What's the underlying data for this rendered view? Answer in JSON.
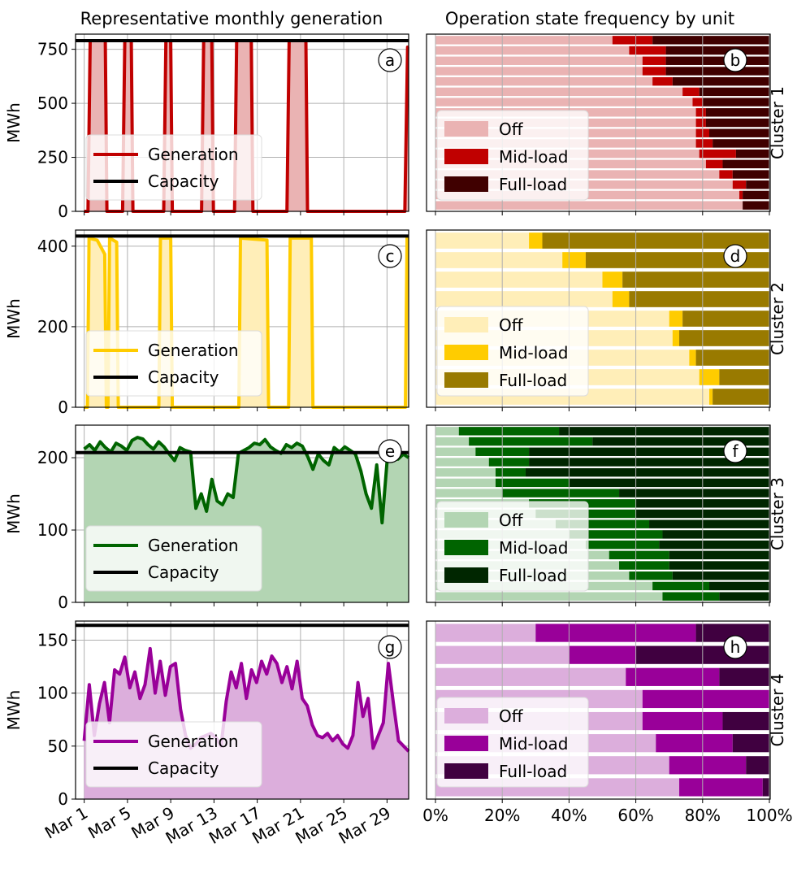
{
  "titles": {
    "left": "Representative monthly generation",
    "right": "Operation state frequency by unit"
  },
  "chart_data": [
    {
      "panel": "a",
      "type": "area",
      "ylabel": "MWh",
      "ylim": [
        0,
        820
      ],
      "yticks": [
        0,
        250,
        500,
        750
      ],
      "capacity": 790,
      "color": "#c00000",
      "fill": "#eab3b3",
      "segments": [
        [
          0.0,
          0
        ],
        [
          0.35,
          0
        ],
        [
          0.55,
          790
        ],
        [
          1.95,
          790
        ],
        [
          2.1,
          0
        ],
        [
          3.55,
          0
        ],
        [
          3.75,
          790
        ],
        [
          4.35,
          790
        ],
        [
          4.5,
          0
        ],
        [
          7.35,
          0
        ],
        [
          7.55,
          790
        ],
        [
          8.0,
          790
        ],
        [
          8.15,
          0
        ],
        [
          10.85,
          0
        ],
        [
          11.05,
          790
        ],
        [
          11.8,
          790
        ],
        [
          11.95,
          0
        ],
        [
          13.9,
          0
        ],
        [
          14.1,
          790
        ],
        [
          15.45,
          790
        ],
        [
          15.6,
          0
        ],
        [
          18.75,
          0
        ],
        [
          18.95,
          790
        ],
        [
          20.5,
          790
        ],
        [
          20.65,
          0
        ],
        [
          29.65,
          0
        ],
        [
          29.9,
          760
        ],
        [
          30.0,
          760
        ]
      ],
      "legend": [
        "Generation",
        "Capacity"
      ]
    },
    {
      "panel": "c",
      "type": "area",
      "ylabel": "MWh",
      "ylim": [
        0,
        440
      ],
      "yticks": [
        0,
        200,
        400
      ],
      "capacity": 425,
      "color": "#ffcc00",
      "fill": "#ffeeb8",
      "segments": [
        [
          0.0,
          0
        ],
        [
          0.3,
          0
        ],
        [
          0.45,
          420
        ],
        [
          1.2,
          415
        ],
        [
          1.9,
          380
        ],
        [
          2.05,
          0
        ],
        [
          2.2,
          0
        ],
        [
          2.35,
          420
        ],
        [
          3.0,
          410
        ],
        [
          3.15,
          0
        ],
        [
          6.9,
          0
        ],
        [
          7.05,
          420
        ],
        [
          8.0,
          420
        ],
        [
          8.15,
          0
        ],
        [
          14.3,
          0
        ],
        [
          14.45,
          420
        ],
        [
          16.9,
          415
        ],
        [
          17.05,
          0
        ],
        [
          18.9,
          0
        ],
        [
          19.05,
          420
        ],
        [
          21.0,
          420
        ],
        [
          21.15,
          0
        ],
        [
          29.7,
          0
        ],
        [
          29.85,
          420
        ],
        [
          30.0,
          420
        ]
      ],
      "legend": [
        "Generation",
        "Capacity"
      ]
    },
    {
      "panel": "e",
      "type": "area",
      "ylabel": "MWh",
      "ylim": [
        0,
        245
      ],
      "yticks": [
        0,
        100,
        200
      ],
      "capacity": 207,
      "color": "#006400",
      "fill": "#b3d5b3",
      "series": [
        212,
        218,
        210,
        222,
        214,
        208,
        220,
        216,
        210,
        224,
        228,
        226,
        218,
        212,
        222,
        215,
        205,
        196,
        214,
        210,
        208,
        130,
        150,
        126,
        170,
        140,
        135,
        150,
        145,
        206,
        210,
        214,
        220,
        218,
        225,
        215,
        210,
        206,
        218,
        214,
        220,
        216,
        202,
        184,
        205,
        196,
        190,
        214,
        208,
        215,
        210,
        205,
        182,
        150,
        130,
        190,
        110,
        200,
        207,
        198,
        205,
        200
      ],
      "legend": [
        "Generation",
        "Capacity"
      ]
    },
    {
      "panel": "g",
      "type": "area",
      "ylabel": "MWh",
      "ylim": [
        0,
        168
      ],
      "yticks": [
        0,
        50,
        100,
        150
      ],
      "capacity": 164,
      "color": "#990099",
      "fill": "#dcaedc",
      "series": [
        55,
        108,
        60,
        90,
        110,
        72,
        122,
        118,
        134,
        105,
        120,
        95,
        108,
        142,
        100,
        130,
        98,
        125,
        128,
        85,
        60,
        48,
        52,
        58,
        60,
        62,
        58,
        50,
        92,
        120,
        105,
        128,
        95,
        122,
        110,
        130,
        118,
        135,
        128,
        110,
        125,
        104,
        130,
        95,
        88,
        70,
        60,
        58,
        62,
        55,
        60,
        52,
        48,
        60,
        110,
        78,
        95,
        48,
        60,
        72,
        128,
        90,
        55,
        50,
        45
      ],
      "legend": [
        "Generation",
        "Capacity"
      ]
    },
    {
      "panel": "b",
      "type": "stacked_barh",
      "label": "Cluster 1",
      "colors": [
        "#eab3b3",
        "#c00000",
        "#400000"
      ],
      "legend": [
        "Off",
        "Mid-load",
        "Full-load"
      ],
      "units": [
        [
          0.53,
          0.12,
          0.35
        ],
        [
          0.58,
          0.11,
          0.31
        ],
        [
          0.62,
          0.07,
          0.31
        ],
        [
          0.62,
          0.07,
          0.31
        ],
        [
          0.65,
          0.06,
          0.29
        ],
        [
          0.74,
          0.05,
          0.21
        ],
        [
          0.77,
          0.03,
          0.2
        ],
        [
          0.78,
          0.03,
          0.19
        ],
        [
          0.78,
          0.03,
          0.19
        ],
        [
          0.78,
          0.04,
          0.18
        ],
        [
          0.78,
          0.05,
          0.17
        ],
        [
          0.79,
          0.11,
          0.1
        ],
        [
          0.81,
          0.05,
          0.14
        ],
        [
          0.85,
          0.04,
          0.11
        ],
        [
          0.89,
          0.04,
          0.07
        ],
        [
          0.91,
          0.01,
          0.08
        ],
        [
          0.92,
          0.0,
          0.08
        ]
      ]
    },
    {
      "panel": "d",
      "type": "stacked_barh",
      "label": "Cluster 2",
      "colors": [
        "#ffeeb8",
        "#ffcc00",
        "#997a00"
      ],
      "legend": [
        "Off",
        "Mid-load",
        "Full-load"
      ],
      "units": [
        [
          0.28,
          0.04,
          0.68
        ],
        [
          0.38,
          0.07,
          0.55
        ],
        [
          0.5,
          0.06,
          0.44
        ],
        [
          0.53,
          0.05,
          0.42
        ],
        [
          0.7,
          0.04,
          0.26
        ],
        [
          0.71,
          0.02,
          0.27
        ],
        [
          0.76,
          0.02,
          0.22
        ],
        [
          0.79,
          0.06,
          0.15
        ],
        [
          0.82,
          0.01,
          0.17
        ]
      ]
    },
    {
      "panel": "f",
      "type": "stacked_barh",
      "label": "Cluster 3",
      "colors": [
        "#b3d5b3",
        "#006400",
        "#002600"
      ],
      "legend": [
        "Off",
        "Mid-load",
        "Full-load"
      ],
      "units": [
        [
          0.07,
          0.3,
          0.63
        ],
        [
          0.1,
          0.37,
          0.53
        ],
        [
          0.12,
          0.16,
          0.72
        ],
        [
          0.16,
          0.12,
          0.72
        ],
        [
          0.18,
          0.09,
          0.73
        ],
        [
          0.18,
          0.22,
          0.6
        ],
        [
          0.2,
          0.35,
          0.45
        ],
        [
          0.28,
          0.32,
          0.4
        ],
        [
          0.3,
          0.3,
          0.4
        ],
        [
          0.36,
          0.28,
          0.36
        ],
        [
          0.4,
          0.28,
          0.32
        ],
        [
          0.45,
          0.22,
          0.33
        ],
        [
          0.52,
          0.18,
          0.3
        ],
        [
          0.55,
          0.15,
          0.3
        ],
        [
          0.58,
          0.13,
          0.29
        ],
        [
          0.65,
          0.17,
          0.18
        ],
        [
          0.68,
          0.17,
          0.15
        ]
      ]
    },
    {
      "panel": "h",
      "type": "stacked_barh",
      "label": "Cluster 4",
      "colors": [
        "#dcaedc",
        "#990099",
        "#400040"
      ],
      "legend": [
        "Off",
        "Mid-load",
        "Full-load"
      ],
      "units": [
        [
          0.3,
          0.48,
          0.22
        ],
        [
          0.4,
          0.2,
          0.4
        ],
        [
          0.57,
          0.28,
          0.15
        ],
        [
          0.62,
          0.38,
          0.0
        ],
        [
          0.62,
          0.24,
          0.14
        ],
        [
          0.66,
          0.23,
          0.11
        ],
        [
          0.7,
          0.23,
          0.07
        ],
        [
          0.73,
          0.25,
          0.02
        ]
      ]
    }
  ],
  "x_ticks_left": [
    "Mar 1",
    "Mar 5",
    "Mar 9",
    "Mar 13",
    "Mar 17",
    "Mar 21",
    "Mar 25",
    "Mar 29"
  ],
  "x_ticks_right": [
    "0%",
    "20%",
    "40%",
    "60%",
    "80%",
    "100%"
  ]
}
